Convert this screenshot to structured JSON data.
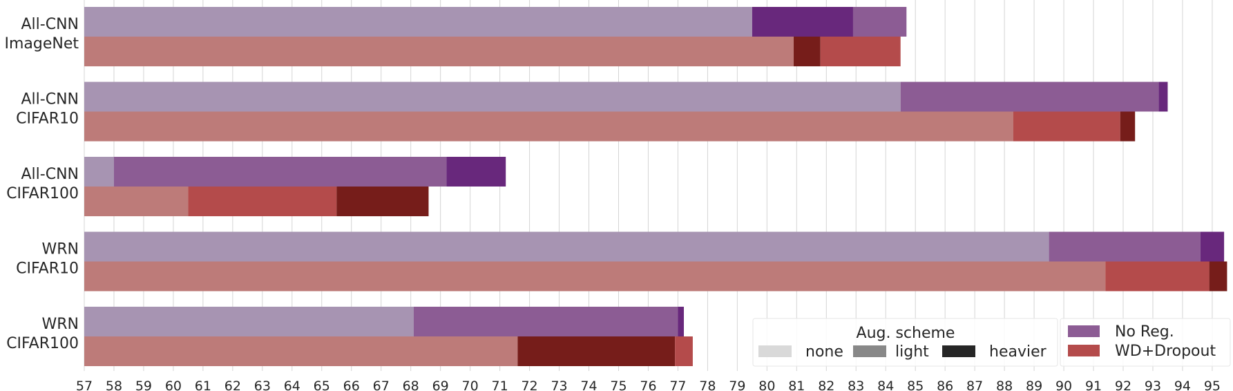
{
  "chart_data": {
    "type": "bar",
    "orientation": "horizontal",
    "stacked": true,
    "xlim": [
      57,
      95.7
    ],
    "x_ticks": [
      57,
      58,
      59,
      60,
      61,
      62,
      63,
      64,
      65,
      66,
      67,
      68,
      69,
      70,
      71,
      72,
      73,
      74,
      75,
      76,
      77,
      78,
      79,
      80,
      81,
      82,
      83,
      84,
      85,
      86,
      87,
      88,
      89,
      90,
      91,
      92,
      93,
      94,
      95
    ],
    "grid": "vertical",
    "groups": [
      {
        "label_lines": [
          "All-CNN",
          "ImageNet"
        ],
        "series": [
          {
            "regularization": "No Reg.",
            "segments": [
              {
                "aug": "none",
                "value": 79.5
              },
              {
                "aug": "heavier",
                "value": 82.9
              },
              {
                "aug": "light",
                "value": 84.7
              }
            ]
          },
          {
            "regularization": "WD+Dropout",
            "segments": [
              {
                "aug": "none",
                "value": 80.9
              },
              {
                "aug": "heavier",
                "value": 81.8
              },
              {
                "aug": "light",
                "value": 84.5
              }
            ]
          }
        ]
      },
      {
        "label_lines": [
          "All-CNN",
          "CIFAR10"
        ],
        "series": [
          {
            "regularization": "No Reg.",
            "segments": [
              {
                "aug": "none",
                "value": 84.5
              },
              {
                "aug": "light",
                "value": 93.2
              },
              {
                "aug": "heavier",
                "value": 93.5
              }
            ]
          },
          {
            "regularization": "WD+Dropout",
            "segments": [
              {
                "aug": "none",
                "value": 88.3
              },
              {
                "aug": "light",
                "value": 91.9
              },
              {
                "aug": "heavier",
                "value": 92.4
              }
            ]
          }
        ]
      },
      {
        "label_lines": [
          "All-CNN",
          "CIFAR100"
        ],
        "series": [
          {
            "regularization": "No Reg.",
            "segments": [
              {
                "aug": "none",
                "value": 58.0
              },
              {
                "aug": "light",
                "value": 69.2
              },
              {
                "aug": "heavier",
                "value": 71.2
              }
            ]
          },
          {
            "regularization": "WD+Dropout",
            "segments": [
              {
                "aug": "none",
                "value": 60.5
              },
              {
                "aug": "light",
                "value": 65.5
              },
              {
                "aug": "heavier",
                "value": 68.6
              }
            ]
          }
        ]
      },
      {
        "label_lines": [
          "WRN",
          "CIFAR10"
        ],
        "series": [
          {
            "regularization": "No Reg.",
            "segments": [
              {
                "aug": "none",
                "value": 89.5
              },
              {
                "aug": "light",
                "value": 94.6
              },
              {
                "aug": "heavier",
                "value": 95.4
              }
            ]
          },
          {
            "regularization": "WD+Dropout",
            "segments": [
              {
                "aug": "none",
                "value": 91.4
              },
              {
                "aug": "light",
                "value": 94.9
              },
              {
                "aug": "heavier",
                "value": 95.5
              }
            ]
          }
        ]
      },
      {
        "label_lines": [
          "WRN",
          "CIFAR100"
        ],
        "series": [
          {
            "regularization": "No Reg.",
            "segments": [
              {
                "aug": "none",
                "value": 68.1
              },
              {
                "aug": "light",
                "value": 77.0
              },
              {
                "aug": "heavier",
                "value": 77.2
              }
            ]
          },
          {
            "regularization": "WD+Dropout",
            "segments": [
              {
                "aug": "none",
                "value": 71.6
              },
              {
                "aug": "heavier",
                "value": 76.9
              },
              {
                "aug": "light",
                "value": 77.5
              }
            ]
          }
        ]
      }
    ],
    "colors": {
      "No Reg.": {
        "none": "#a794b2",
        "light": "#8c5c94",
        "heavier": "#68287c"
      },
      "WD+Dropout": {
        "none": "#bd7b79",
        "light": "#b44b4b",
        "heavier": "#761d1a"
      }
    },
    "legend": {
      "placement": "bottom-right",
      "aug_title": "Aug. scheme",
      "aug_entries": [
        {
          "label": "none",
          "color": "#d9d9d9"
        },
        {
          "label": "light",
          "color": "#888888"
        },
        {
          "label": "heavier",
          "color": "#262626"
        }
      ],
      "reg_entries": [
        {
          "label": "No Reg.",
          "color": "#8c5c94"
        },
        {
          "label": "WD+Dropout",
          "color": "#b44b4b"
        }
      ]
    }
  }
}
